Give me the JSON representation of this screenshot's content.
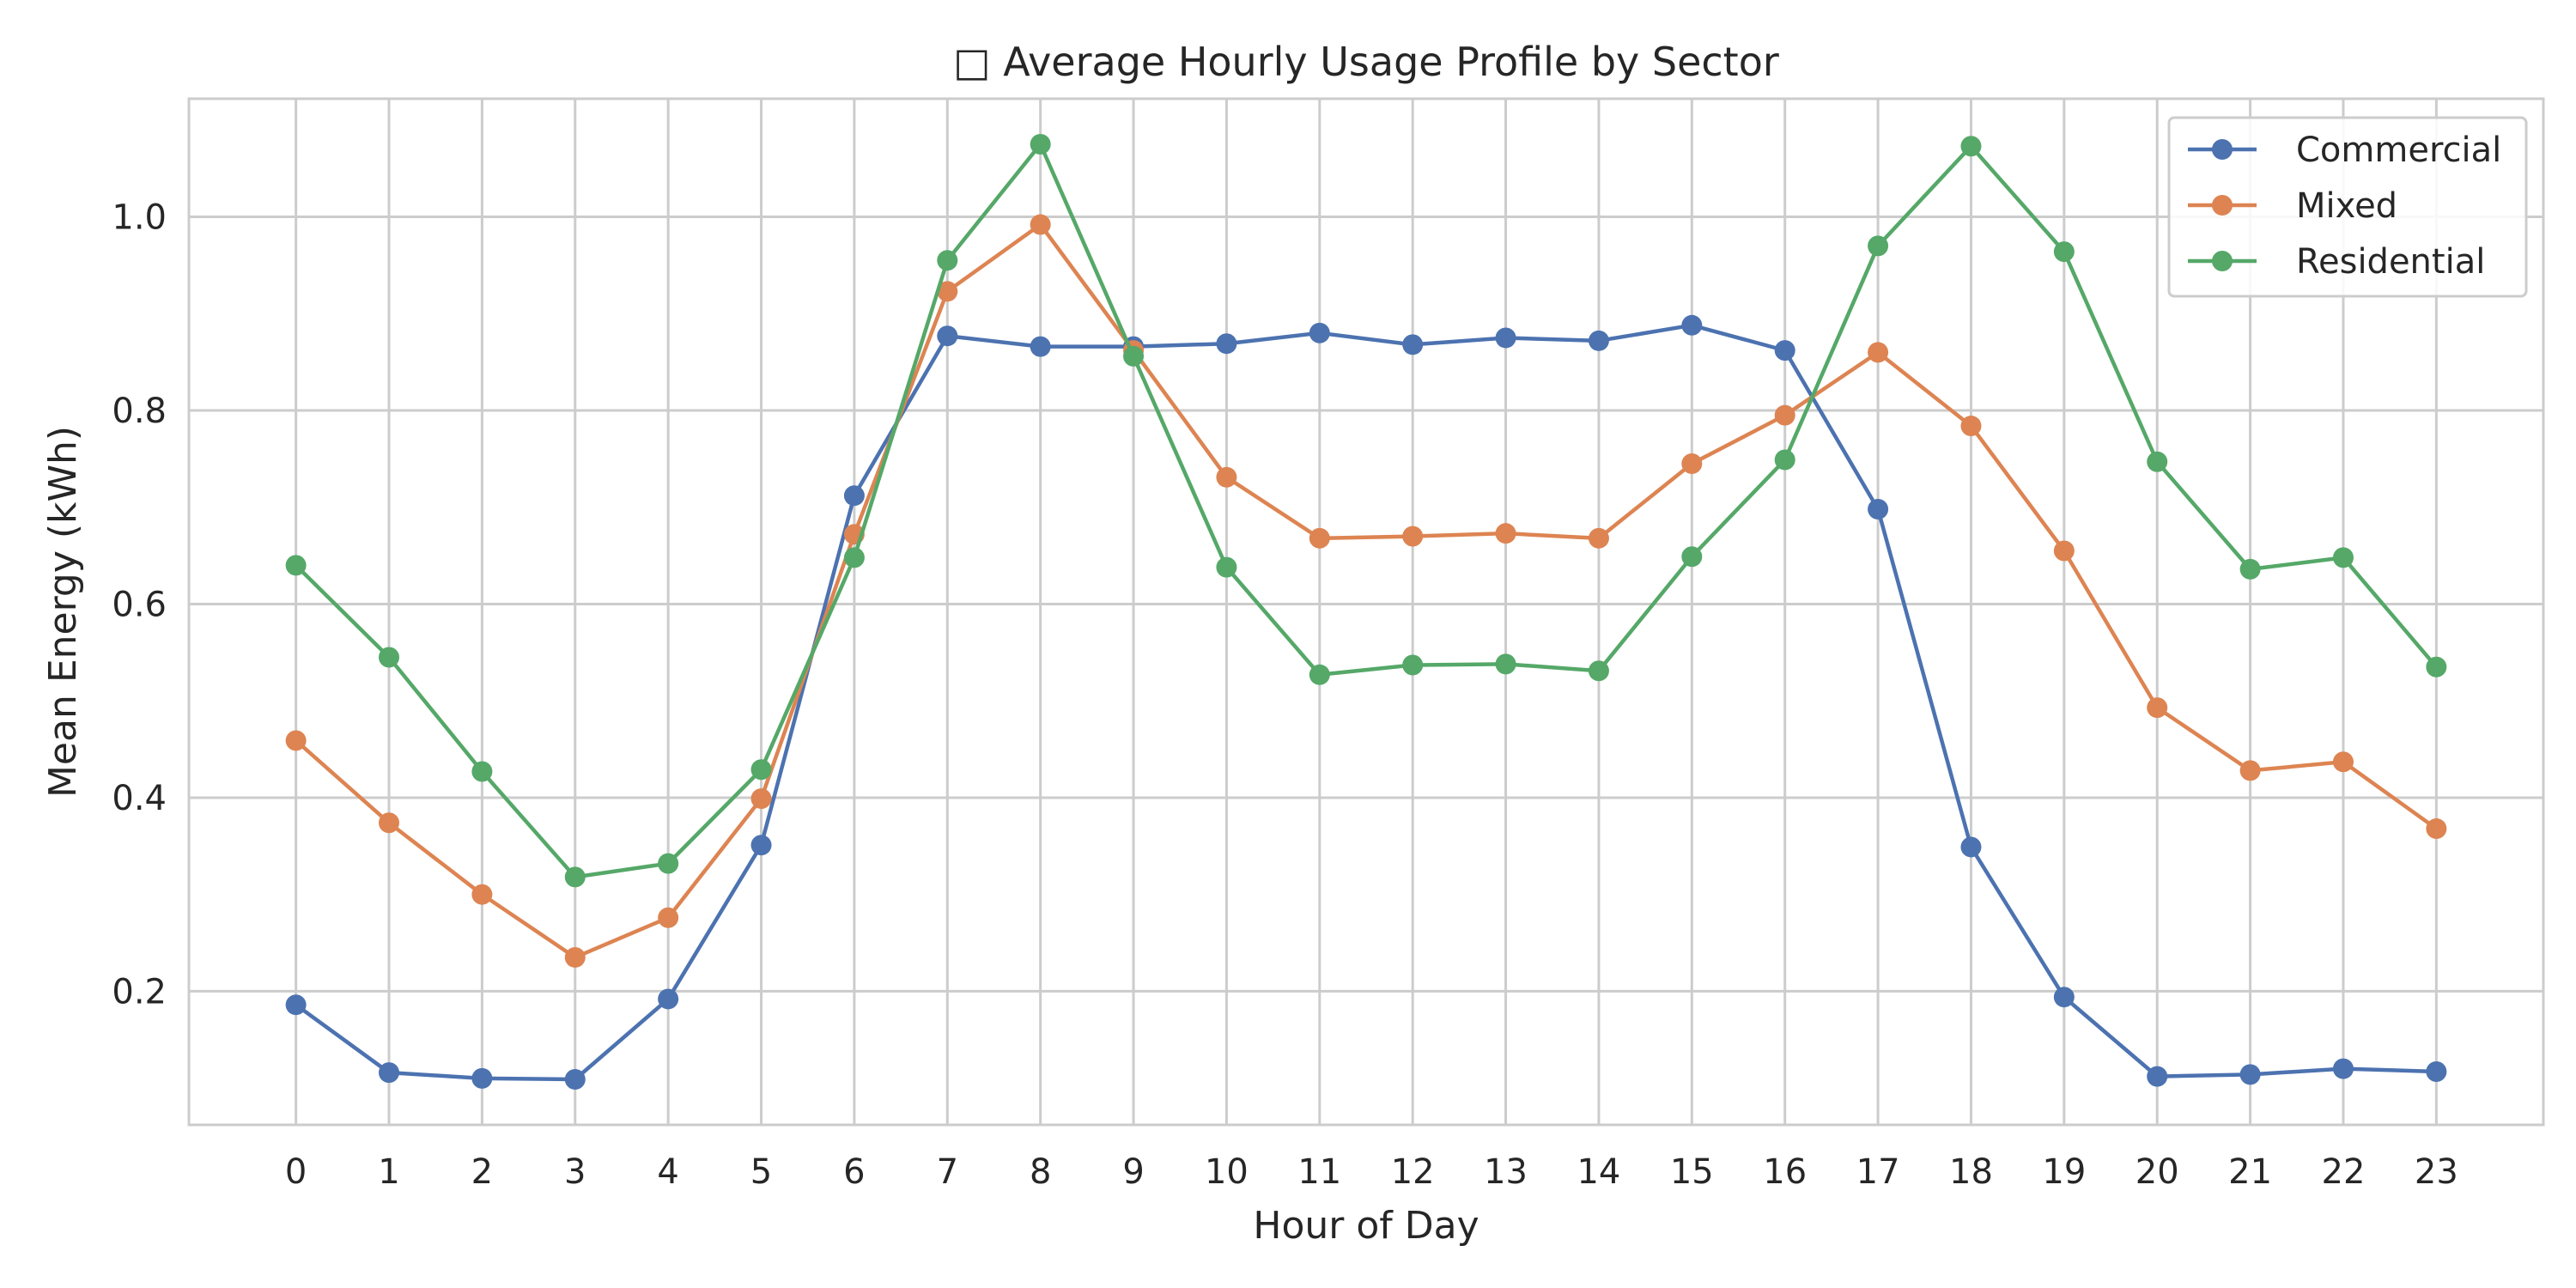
{
  "chart_data": {
    "type": "line",
    "title": "□ Average Hourly Usage Profile by Sector",
    "xlabel": "Hour of Day",
    "ylabel": "Mean Energy (kWh)",
    "x": [
      0,
      1,
      2,
      3,
      4,
      5,
      6,
      7,
      8,
      9,
      10,
      11,
      12,
      13,
      14,
      15,
      16,
      17,
      18,
      19,
      20,
      21,
      22,
      23
    ],
    "xlim": [
      -1.15,
      24.15
    ],
    "ylim": [
      0.062,
      1.122
    ],
    "yticks": [
      0.2,
      0.4,
      0.6,
      0.8,
      1.0
    ],
    "ytick_labels": [
      "0.2",
      "0.4",
      "0.6",
      "0.8",
      "1.0"
    ],
    "xtick_labels": [
      "0",
      "1",
      "2",
      "3",
      "4",
      "5",
      "6",
      "7",
      "8",
      "9",
      "10",
      "11",
      "12",
      "13",
      "14",
      "15",
      "16",
      "17",
      "18",
      "19",
      "20",
      "21",
      "22",
      "23"
    ],
    "grid": true,
    "legend_position": "top-right",
    "series": [
      {
        "name": "Commercial",
        "color": "#4c72b0",
        "values": [
          0.186,
          0.116,
          0.11,
          0.109,
          0.192,
          0.351,
          0.712,
          0.877,
          0.866,
          0.866,
          0.869,
          0.88,
          0.868,
          0.875,
          0.872,
          0.888,
          0.862,
          0.698,
          0.349,
          0.194,
          0.112,
          0.114,
          0.12,
          0.117
        ]
      },
      {
        "name": "Mixed",
        "color": "#dd8452",
        "values": [
          0.459,
          0.374,
          0.3,
          0.235,
          0.276,
          0.399,
          0.672,
          0.923,
          0.992,
          0.862,
          0.731,
          0.668,
          0.67,
          0.673,
          0.668,
          0.745,
          0.795,
          0.86,
          0.784,
          0.655,
          0.493,
          0.428,
          0.437,
          0.368
        ]
      },
      {
        "name": "Residential",
        "color": "#55a868",
        "values": [
          0.64,
          0.545,
          0.427,
          0.318,
          0.332,
          0.429,
          0.648,
          0.955,
          1.075,
          0.856,
          0.638,
          0.527,
          0.537,
          0.538,
          0.531,
          0.649,
          0.749,
          0.97,
          1.073,
          0.964,
          0.747,
          0.636,
          0.648,
          0.535
        ]
      }
    ]
  }
}
